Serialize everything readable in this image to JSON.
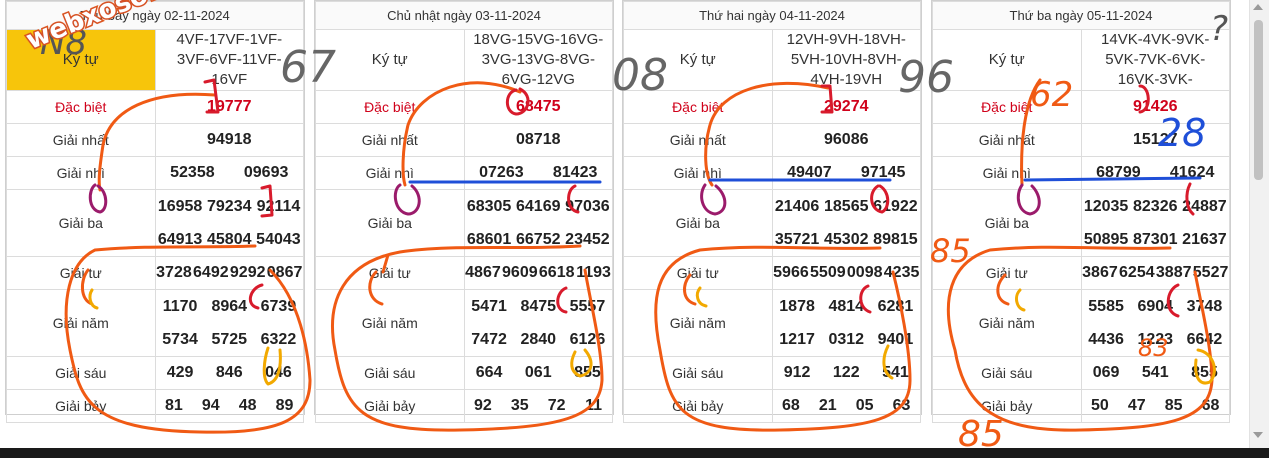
{
  "boards": [
    {
      "title": "Thứ bảy ngày 02-11-2024",
      "codes_label": "Ký tự",
      "codes": "4VF-17VF-1VF-3VF-6VF-11VF-16VF",
      "rows": [
        {
          "label": "Đặc biệt",
          "values": [
            "19777"
          ]
        },
        {
          "label": "Giải nhất",
          "values": [
            "94918"
          ]
        },
        {
          "label": "Giải nhì",
          "values": [
            "52358",
            "09693"
          ]
        },
        {
          "label": "Giải ba",
          "values": [
            "16958",
            "79234",
            "92114",
            "64913",
            "45804",
            "54043"
          ]
        },
        {
          "label": "Giải tư",
          "values": [
            "3728",
            "6492",
            "9292",
            "0867"
          ]
        },
        {
          "label": "Giải năm",
          "values": [
            "1170",
            "8964",
            "6739",
            "5734",
            "5725",
            "6322"
          ]
        },
        {
          "label": "Giải sáu",
          "values": [
            "429",
            "846",
            "046"
          ]
        },
        {
          "label": "Giải bảy",
          "values": [
            "81",
            "94",
            "48",
            "89"
          ]
        }
      ]
    },
    {
      "title": "Chủ nhật ngày 03-11-2024",
      "codes_label": "Ký tự",
      "codes": "18VG-15VG-16VG-3VG-13VG-8VG-6VG-12VG",
      "rows": [
        {
          "label": "Đặc biệt",
          "values": [
            "68475"
          ]
        },
        {
          "label": "Giải nhất",
          "values": [
            "08718"
          ]
        },
        {
          "label": "Giải nhì",
          "values": [
            "07263",
            "81423"
          ]
        },
        {
          "label": "Giải ba",
          "values": [
            "68305",
            "64169",
            "97036",
            "68601",
            "66752",
            "23452"
          ]
        },
        {
          "label": "Giải tư",
          "values": [
            "4867",
            "9609",
            "6618",
            "1193"
          ]
        },
        {
          "label": "Giải năm",
          "values": [
            "5471",
            "8475",
            "5557",
            "7472",
            "2840",
            "6126"
          ]
        },
        {
          "label": "Giải sáu",
          "values": [
            "664",
            "061",
            "855"
          ]
        },
        {
          "label": "Giải bảy",
          "values": [
            "92",
            "35",
            "72",
            "11"
          ]
        }
      ]
    },
    {
      "title": "Thứ hai ngày 04-11-2024",
      "codes_label": "Ký tự",
      "codes": "12VH-9VH-18VH-5VH-10VH-8VH-4VH-19VH",
      "rows": [
        {
          "label": "Đặc biệt",
          "values": [
            "29274"
          ]
        },
        {
          "label": "Giải nhất",
          "values": [
            "96086"
          ]
        },
        {
          "label": "Giải nhì",
          "values": [
            "49407",
            "97145"
          ]
        },
        {
          "label": "Giải ba",
          "values": [
            "21406",
            "18565",
            "61922",
            "35721",
            "45302",
            "89815"
          ]
        },
        {
          "label": "Giải tư",
          "values": [
            "5966",
            "5509",
            "0098",
            "4235"
          ]
        },
        {
          "label": "Giải năm",
          "values": [
            "1878",
            "4814",
            "6281",
            "1217",
            "0312",
            "9401"
          ]
        },
        {
          "label": "Giải sáu",
          "values": [
            "912",
            "122",
            "541"
          ]
        },
        {
          "label": "Giải bảy",
          "values": [
            "68",
            "21",
            "05",
            "63"
          ]
        }
      ]
    },
    {
      "title": "Thứ ba ngày 05-11-2024",
      "codes_label": "Ký tự",
      "codes": "14VK-4VK-9VK-5VK-7VK-6VK-16VK-3VK-",
      "rows": [
        {
          "label": "Đặc biệt",
          "values": [
            "91426"
          ]
        },
        {
          "label": "Giải nhất",
          "values": [
            "15127"
          ]
        },
        {
          "label": "Giải nhì",
          "values": [
            "68799",
            "41624"
          ]
        },
        {
          "label": "Giải ba",
          "values": [
            "12035",
            "82326",
            "24887",
            "50895",
            "87301",
            "21637"
          ]
        },
        {
          "label": "Giải tư",
          "values": [
            "3867",
            "6254",
            "3887",
            "5527"
          ]
        },
        {
          "label": "Giải năm",
          "values": [
            "5585",
            "6904",
            "3748",
            "4436",
            "1223",
            "6642"
          ]
        },
        {
          "label": "Giải sáu",
          "values": [
            "069",
            "541",
            "855"
          ]
        },
        {
          "label": "Giải bảy",
          "values": [
            "50",
            "47",
            "85",
            "68"
          ]
        }
      ]
    }
  ],
  "watermark": "webxoso.net",
  "handwritten": {
    "board1_corner": "N8",
    "board1_side": "67",
    "board2_side": "08",
    "board3_side": "96",
    "board4_top": "62",
    "board4_blue": "28",
    "board4_left": "85",
    "board4_mid": "83",
    "board4_bottom": "85",
    "board4_question": "?"
  },
  "colors": {
    "special": "#d0021b",
    "orange_ink": "#f05a14",
    "red_ink": "#d81b2c",
    "yellow_ink": "#f2a900",
    "purple_ink": "#9b1b6b",
    "blue_ink": "#1f4fd8",
    "gray_ink": "#666666"
  }
}
